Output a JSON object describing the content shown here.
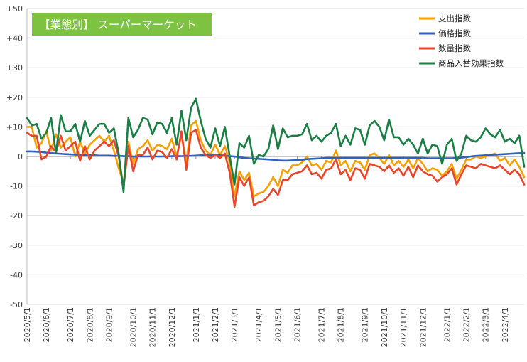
{
  "chart_data": {
    "type": "line",
    "title": "【業態別】 スーパーマーケット",
    "xlabel": "",
    "ylabel": "",
    "ylim": [
      -50,
      50
    ],
    "yticks": [
      {
        "value": 50,
        "label": "+50"
      },
      {
        "value": 40,
        "label": "+40"
      },
      {
        "value": 30,
        "label": "+30"
      },
      {
        "value": 20,
        "label": "+20"
      },
      {
        "value": 10,
        "label": "+10"
      },
      {
        "value": 0,
        "label": "0"
      },
      {
        "value": -10,
        "label": "-10"
      },
      {
        "value": -20,
        "label": "-20"
      },
      {
        "value": -30,
        "label": "-30"
      },
      {
        "value": -40,
        "label": "-40"
      },
      {
        "value": -50,
        "label": "-50"
      }
    ],
    "x_ticks": [
      {
        "index": 0,
        "label": "2020/5/1"
      },
      {
        "index": 4,
        "label": "2020/6/1"
      },
      {
        "index": 9,
        "label": "2020/7/1"
      },
      {
        "index": 13,
        "label": "2020/8/1"
      },
      {
        "index": 17,
        "label": "2020/9/1"
      },
      {
        "index": 22,
        "label": "2020/10/1"
      },
      {
        "index": 26,
        "label": "2020/11/1"
      },
      {
        "index": 30,
        "label": "2020/12/1"
      },
      {
        "index": 35,
        "label": "2021/1/1"
      },
      {
        "index": 39,
        "label": "2021/2/1"
      },
      {
        "index": 43,
        "label": "2021/3/1"
      },
      {
        "index": 48,
        "label": "2021/4/1"
      },
      {
        "index": 52,
        "label": "2021/5/1"
      },
      {
        "index": 56,
        "label": "2021/6/1"
      },
      {
        "index": 61,
        "label": "2021/7/1"
      },
      {
        "index": 65,
        "label": "2021/8/1"
      },
      {
        "index": 70,
        "label": "2021/9/1"
      },
      {
        "index": 74,
        "label": "2021/10/1"
      },
      {
        "index": 78,
        "label": "2021/11/1"
      },
      {
        "index": 82,
        "label": "2021/12/1"
      },
      {
        "index": 87,
        "label": "2022/1/1"
      },
      {
        "index": 91,
        "label": "2022/2/1"
      },
      {
        "index": 95,
        "label": "2022/3/1"
      },
      {
        "index": 99,
        "label": "2022/4/1"
      }
    ],
    "n_points": 104,
    "legend_position": "top-right",
    "series": [
      {
        "name": "支出指数",
        "color": "#F5A000",
        "values": [
          10,
          10,
          3,
          4.5,
          8.5,
          2,
          7.5,
          3,
          5,
          6.5,
          0,
          5,
          1,
          4,
          5.5,
          7,
          5,
          7,
          2,
          -4,
          -9,
          5,
          -2.5,
          2.5,
          3.5,
          5.5,
          2,
          4,
          3.5,
          2.5,
          6,
          0,
          7.5,
          -2,
          10.5,
          12,
          5.5,
          2,
          0.5,
          4,
          0.5,
          3.5,
          -2,
          -13.5,
          -5,
          -8,
          -5.5,
          -13.5,
          -12.5,
          -12,
          -10,
          -7,
          -10,
          -4.5,
          -5.5,
          -3,
          -3,
          -2,
          0,
          -3,
          -2.5,
          -4.5,
          -1.5,
          -2,
          2,
          -3,
          -1.5,
          -5,
          -1.5,
          -2,
          -4.5,
          0.5,
          1,
          -0.5,
          -2.5,
          0.5,
          -3,
          -1.5,
          -3.5,
          -1,
          -4,
          -0.5,
          -2.5,
          -5,
          -4,
          -4.5,
          -6.5,
          -5,
          -2.5,
          -7.5,
          -4.5,
          -1,
          -1,
          0,
          -0.5,
          0,
          0.5,
          1,
          -1.5,
          -0.5,
          -3,
          -1,
          -3.5,
          -7
        ]
      },
      {
        "name": "価格指数",
        "color": "#2F62C0",
        "values": [
          1.7,
          1.7,
          1.6,
          1.5,
          1.3,
          1.2,
          1.0,
          0.9,
          0.8,
          0.7,
          0.6,
          0.5,
          0.5,
          0.4,
          0.4,
          0.3,
          0.3,
          0.3,
          0.2,
          0.2,
          0.1,
          0.1,
          0.0,
          0.0,
          0.0,
          0.0,
          0.0,
          0.0,
          0.0,
          0.0,
          0.1,
          0.1,
          0.1,
          0.2,
          0.2,
          0.3,
          0.4,
          0.5,
          0.5,
          0.5,
          0.4,
          0.3,
          0.1,
          0.0,
          -0.3,
          -0.5,
          -0.6,
          -0.7,
          -0.8,
          -0.9,
          -1.0,
          -1.1,
          -1.3,
          -1.4,
          -1.4,
          -1.3,
          -1.2,
          -1.1,
          -0.9,
          -0.8,
          -0.7,
          -0.6,
          -0.5,
          -0.5,
          -0.5,
          -0.5,
          -0.5,
          -0.5,
          -0.5,
          -0.5,
          -0.5,
          -0.5,
          -0.5,
          -0.5,
          -0.5,
          -0.5,
          -0.5,
          -0.5,
          -0.5,
          -0.5,
          -0.5,
          -0.5,
          -0.5,
          -0.6,
          -0.6,
          -0.6,
          -0.6,
          -0.6,
          -0.6,
          -0.5,
          -0.4,
          -0.2,
          0.0,
          0.2,
          0.3,
          0.4,
          0.5,
          0.6,
          0.7,
          0.8,
          0.9,
          1.0,
          1.1,
          1.2
        ]
      },
      {
        "name": "数量指数",
        "color": "#E8452A",
        "values": [
          8,
          7,
          7,
          -1,
          0,
          3.5,
          1.5,
          7,
          2,
          3.5,
          5,
          -1.5,
          3.5,
          -1,
          2,
          3.5,
          5,
          3.5,
          5.5,
          0,
          -10.5,
          3.5,
          -5,
          0.5,
          0.5,
          3,
          -1,
          2,
          1.5,
          -0.5,
          2.5,
          -1,
          8.5,
          -4.5,
          8,
          9,
          3,
          0.5,
          -0.5,
          0.5,
          -0.5,
          1,
          -5.5,
          -17,
          -7,
          -10,
          -7,
          -16.5,
          -15.5,
          -15,
          -13.5,
          -11,
          -13,
          -8,
          -8,
          -6,
          -5.5,
          -5,
          -3,
          -6,
          -5.5,
          -7.5,
          -4.5,
          -4,
          -1,
          -6,
          -4.5,
          -8,
          -4,
          -4.5,
          -7.5,
          -2.5,
          -3,
          -3.5,
          -5,
          -3,
          -5.5,
          -4,
          -6.5,
          -3.5,
          -7,
          -3,
          -5,
          -6,
          -6.5,
          -8.5,
          -7,
          -6,
          -4,
          -9.5,
          -6,
          -3,
          -3.5,
          -4,
          -2.5,
          -3,
          -3.5,
          -4,
          -3,
          -4.5,
          -6,
          -4.5,
          -6,
          -9.5
        ]
      },
      {
        "name": "商品入替効果指数",
        "color": "#1A7F45",
        "values": [
          13,
          10.5,
          11,
          6,
          8,
          13,
          1,
          14,
          8.5,
          8.5,
          11,
          5,
          12,
          7,
          9,
          11,
          11,
          8,
          9.5,
          1,
          -12,
          13,
          6.5,
          9,
          13,
          12.5,
          7.5,
          11.5,
          11,
          8,
          13,
          4,
          15.5,
          5.5,
          16.5,
          19.5,
          12,
          6,
          3,
          9.5,
          3.5,
          10,
          0,
          -9.5,
          4.5,
          3,
          7,
          -2.5,
          0.5,
          0,
          2.5,
          10.5,
          2.5,
          9.5,
          6.5,
          7,
          7,
          7.5,
          11,
          5.5,
          7,
          5,
          7,
          8,
          11,
          3.5,
          7,
          4,
          9.5,
          9,
          4,
          10.5,
          12,
          10,
          5.5,
          12.5,
          6.5,
          6.5,
          4,
          6,
          4,
          1,
          6,
          1,
          4,
          3.5,
          -2.5,
          4,
          6,
          -1.5,
          1,
          7,
          5.5,
          5,
          6.5,
          9.5,
          7.5,
          6.5,
          9,
          5,
          6,
          4.5,
          7,
          -3.5
        ]
      }
    ]
  }
}
